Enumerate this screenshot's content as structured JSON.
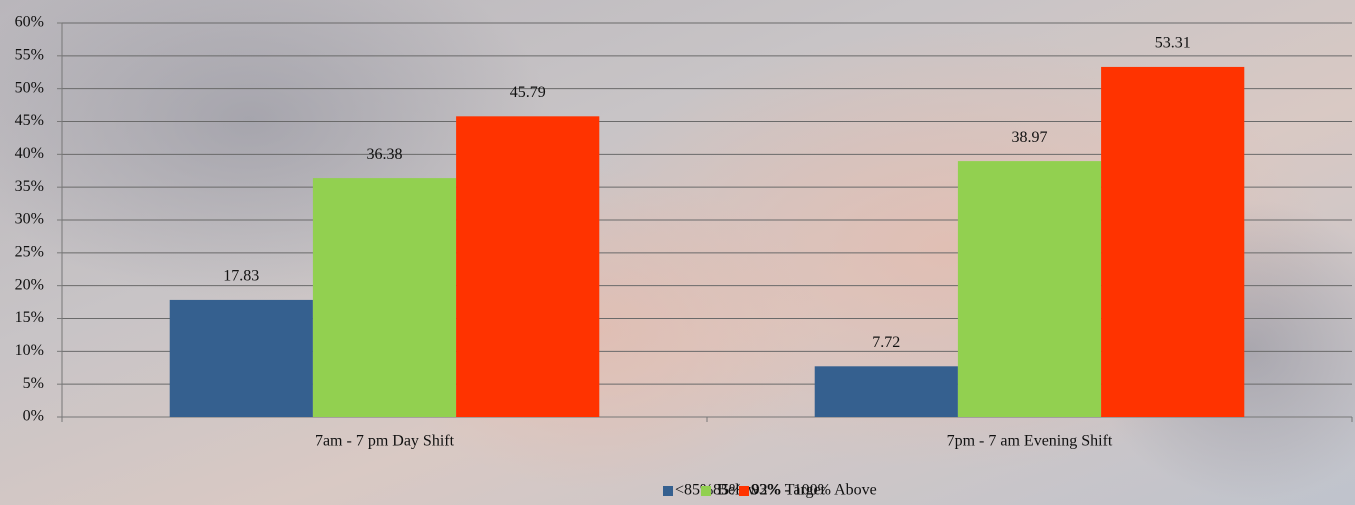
{
  "chart_data": {
    "type": "bar",
    "categories": [
      "7am - 7 pm Day Shift",
      "7pm - 7 am Evening Shift"
    ],
    "series": [
      {
        "name": "<85% Below",
        "color": "#35608f",
        "values": [
          17.83,
          7.72
        ]
      },
      {
        "name": "85%- 92% Target",
        "color": "#92d050",
        "values": [
          36.38,
          38.97
        ]
      },
      {
        "name": "93% - 100% Above",
        "color": "#ff3300",
        "values": [
          45.79,
          53.31
        ]
      }
    ],
    "ylim": [
      0,
      60
    ],
    "yticks": [
      {
        "value": 0,
        "label": "0%"
      },
      {
        "value": 5,
        "label": "5%"
      },
      {
        "value": 10,
        "label": "10%"
      },
      {
        "value": 15,
        "label": "15%"
      },
      {
        "value": 20,
        "label": "20%"
      },
      {
        "value": 25,
        "label": "25%"
      },
      {
        "value": 30,
        "label": "30%"
      },
      {
        "value": 35,
        "label": "35%"
      },
      {
        "value": 40,
        "label": "40%"
      },
      {
        "value": 45,
        "label": "45%"
      },
      {
        "value": 50,
        "label": "50%"
      },
      {
        "value": 55,
        "label": "55%"
      },
      {
        "value": 60,
        "label": "60%"
      }
    ],
    "grid": true,
    "legend": "bottom"
  }
}
